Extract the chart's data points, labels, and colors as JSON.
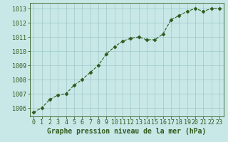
{
  "x": [
    0,
    1,
    2,
    3,
    4,
    5,
    6,
    7,
    8,
    9,
    10,
    11,
    12,
    13,
    14,
    15,
    16,
    17,
    18,
    19,
    20,
    21,
    22,
    23
  ],
  "y": [
    1005.7,
    1006.0,
    1006.6,
    1006.9,
    1007.0,
    1007.6,
    1008.0,
    1008.5,
    1009.0,
    1009.8,
    1010.3,
    1010.7,
    1010.9,
    1011.0,
    1010.8,
    1010.8,
    1011.2,
    1012.2,
    1012.5,
    1012.8,
    1013.0,
    1012.8,
    1013.0,
    1013.0
  ],
  "ylim": [
    1005.4,
    1013.4
  ],
  "yticks": [
    1006,
    1007,
    1008,
    1009,
    1010,
    1011,
    1012,
    1013
  ],
  "xticks": [
    0,
    1,
    2,
    3,
    4,
    5,
    6,
    7,
    8,
    9,
    10,
    11,
    12,
    13,
    14,
    15,
    16,
    17,
    18,
    19,
    20,
    21,
    22,
    23
  ],
  "xlabel": "Graphe pression niveau de la mer (hPa)",
  "line_color": "#2d5a1b",
  "bg_color": "#c8e8e8",
  "grid_color": "#9ec8c8",
  "marker_size": 2.5,
  "line_width": 0.8,
  "xlabel_fontsize": 7,
  "tick_fontsize": 6,
  "xlabel_color": "#2d5a1b",
  "tick_color": "#2d5a1b"
}
